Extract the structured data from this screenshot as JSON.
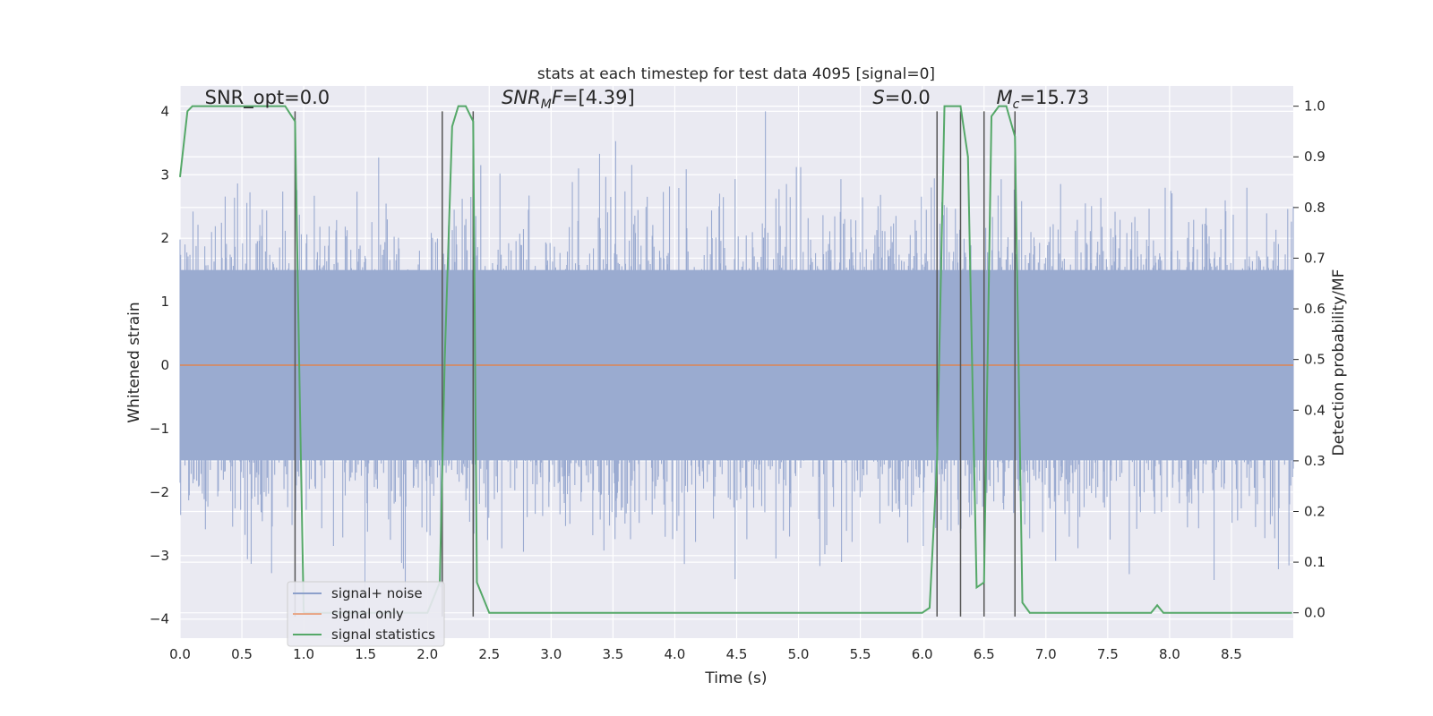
{
  "chart_data": {
    "type": "line",
    "title": "stats at each timestep for test data 4095 [signal=0]",
    "xlabel": "Time (s)",
    "ylabel_left": "Whitened strain",
    "ylabel_right": "Detection probability/MF",
    "xlim": [
      0.0,
      9.0
    ],
    "ylim_left": [
      -4.3,
      4.4
    ],
    "ylim_right": [
      -0.05,
      1.04
    ],
    "x_ticks": [
      "0.0",
      "0.5",
      "1.0",
      "1.5",
      "2.0",
      "2.5",
      "3.0",
      "3.5",
      "4.0",
      "4.5",
      "5.0",
      "5.5",
      "6.0",
      "6.5",
      "7.0",
      "7.5",
      "8.0",
      "8.5"
    ],
    "y_ticks_left": [
      "−4",
      "−3",
      "−2",
      "−1",
      "0",
      "1",
      "2",
      "3",
      "4"
    ],
    "y_ticks_right": [
      "0.0",
      "0.1",
      "0.2",
      "0.3",
      "0.4",
      "0.5",
      "0.6",
      "0.7",
      "0.8",
      "0.9",
      "1.0"
    ],
    "grid": true,
    "legend_position": "lower-left",
    "colors": {
      "plot_background": "#eaeaf2",
      "grid": "#ffffff",
      "signal_noise": "#4c72b0",
      "signal_only": "#dd8452",
      "signal_statistics": "#55a868",
      "markers": "#555555"
    },
    "annotations": [
      {
        "text": "SNR_opt=0.0",
        "x": 0.2
      },
      {
        "text": "SNR_MF=[4.39]",
        "x": 2.6
      },
      {
        "text": "S=0.0",
        "x": 5.6
      },
      {
        "text": "M_c=15.73",
        "x": 6.6
      }
    ],
    "vertical_markers": [
      0.93,
      2.12,
      2.37,
      6.12,
      6.31,
      6.5,
      6.75
    ],
    "series": [
      {
        "name": "signal+ noise",
        "description_noise_envelope": "stationary whitened noise, roughly symmetric about 0 with peaks near ±4",
        "x_range": [
          0.0,
          9.0
        ],
        "amplitude_typical": 1.6,
        "amplitude_peak": 4.0
      },
      {
        "name": "signal only",
        "x": [
          0.0,
          9.0
        ],
        "y": [
          0.0,
          0.0
        ]
      },
      {
        "name": "signal statistics",
        "axis": "right",
        "x": [
          0.0,
          0.06,
          0.1,
          0.2,
          0.5,
          0.85,
          0.93,
          0.97,
          1.0,
          1.1,
          1.5,
          2.0,
          2.1,
          2.14,
          2.2,
          2.25,
          2.31,
          2.37,
          2.4,
          2.5,
          3.0,
          4.0,
          5.0,
          6.0,
          6.06,
          6.12,
          6.18,
          6.25,
          6.31,
          6.37,
          6.44,
          6.5,
          6.56,
          6.62,
          6.68,
          6.75,
          6.81,
          6.87,
          7.0,
          7.5,
          7.75,
          7.85,
          7.9,
          7.95,
          8.0,
          8.5,
          8.99
        ],
        "y": [
          0.86,
          0.99,
          1.0,
          1.0,
          1.0,
          1.0,
          0.97,
          0.4,
          0.0,
          0.0,
          0.0,
          0.0,
          0.06,
          0.5,
          0.96,
          1.0,
          1.0,
          0.97,
          0.06,
          0.0,
          0.0,
          0.0,
          0.0,
          0.0,
          0.01,
          0.3,
          1.0,
          1.0,
          1.0,
          0.9,
          0.05,
          0.06,
          0.98,
          1.0,
          1.0,
          0.94,
          0.02,
          0.0,
          0.0,
          0.0,
          0.0,
          0.0,
          0.015,
          0.0,
          0.0,
          0.0,
          0.0
        ]
      }
    ]
  },
  "legend": {
    "signal_noise": "signal+ noise",
    "signal_only": "signal only",
    "signal_statistics": "signal statistics"
  }
}
